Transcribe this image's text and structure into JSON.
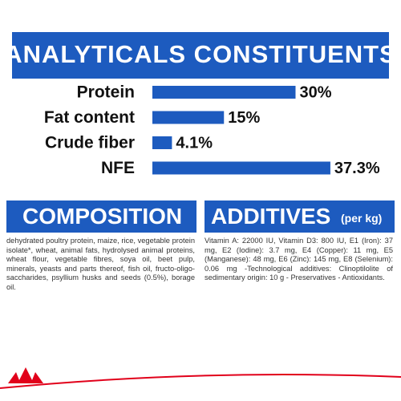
{
  "chart_data": {
    "type": "bar",
    "title": "ANALYTICALS CONSTITUENTS",
    "categories": [
      "Protein",
      "Fat content",
      "Crude fiber",
      "NFE"
    ],
    "values": [
      30,
      15,
      4.1,
      37.3
    ],
    "value_labels": [
      "30%",
      "15%",
      "4.1%",
      "37.3%"
    ],
    "color": "#1d5bbf"
  },
  "composition": {
    "title": "COMPOSITION",
    "text": "dehydrated poultry protein, maize, rice, vegetable protein isolate*, wheat, animal fats, hydrolysed animal proteins, wheat flour, vegetable fibres, soya oil, beet pulp, minerals, yeasts and parts thereof, fish oil, fructo-oligo-saccharides, psyllium husks and seeds (0.5%), borage oil."
  },
  "additives": {
    "title": "ADDITIVES",
    "subtitle": "(per kg)",
    "text": "Vitamin A: 22000 IU, Vitamin D3: 800 IU, E1 (Iron): 37 mg, E2 (Iodine): 3.7 mg, E4 (Copper): 11 mg, E5 (Manganese): 48 mg, E6 (Zinc): 145 mg, E8 (Selenium): 0.06 mg -Technological additives: Clinoptilolite of sedimentary origin: 10 g - Preservatives - Antioxidants."
  }
}
